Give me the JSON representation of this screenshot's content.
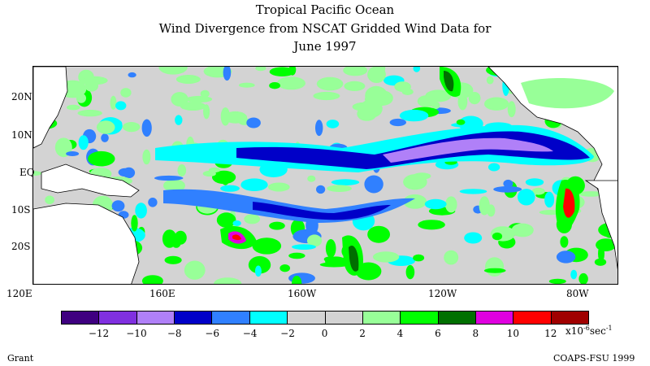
{
  "title": {
    "line1": "Tropical Pacific Ocean",
    "line2": "Wind Divergence from NSCAT Gridded Wind Data for",
    "line3": "June 1997"
  },
  "map": {
    "lat_labels": [
      "20N",
      "10N",
      "EQ",
      "10S",
      "20S"
    ],
    "lon_labels": [
      "120E",
      "160E",
      "160W",
      "120W",
      "80W"
    ],
    "lat_range": [
      -30,
      28
    ],
    "lon_range": [
      120,
      282
    ]
  },
  "colorbar": {
    "colors": [
      "#3f0080",
      "#8030e0",
      "#b080f8",
      "#0000c8",
      "#3080ff",
      "#00ffff",
      "#d3d3d3",
      "#d3d3d3",
      "#98ff98",
      "#00ff00",
      "#007000",
      "#e000e0",
      "#ff0000",
      "#a00000"
    ],
    "tick_labels": [
      "-12",
      "-10",
      "-8",
      "-6",
      "-4",
      "-2",
      "0",
      "2",
      "4",
      "6",
      "8",
      "10",
      "12"
    ],
    "units_base": "x10",
    "units_exp": "-6",
    "units_tail": "sec",
    "units_tail_exp": "-1"
  },
  "footer": {
    "left": "Grant",
    "right": "COAPS-FSU 1999"
  }
}
